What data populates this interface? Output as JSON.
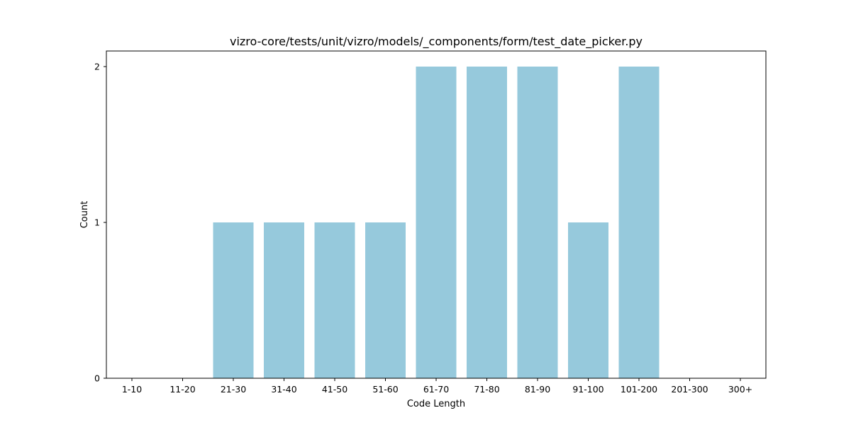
{
  "chart_data": {
    "type": "bar",
    "title": "vizro-core/tests/unit/vizro/models/_components/form/test_date_picker.py",
    "xlabel": "Code Length",
    "ylabel": "Count",
    "categories": [
      "1-10",
      "11-20",
      "21-30",
      "31-40",
      "41-50",
      "51-60",
      "61-70",
      "71-80",
      "81-90",
      "91-100",
      "101-200",
      "201-300",
      "300+"
    ],
    "values": [
      0,
      0,
      1,
      1,
      1,
      1,
      2,
      2,
      2,
      1,
      2,
      0,
      0
    ],
    "ylim": [
      0,
      2.1
    ],
    "yticks": [
      0,
      1,
      2
    ],
    "grid": false,
    "bar_color": "#96c9dc",
    "axis_color": "#000000"
  }
}
